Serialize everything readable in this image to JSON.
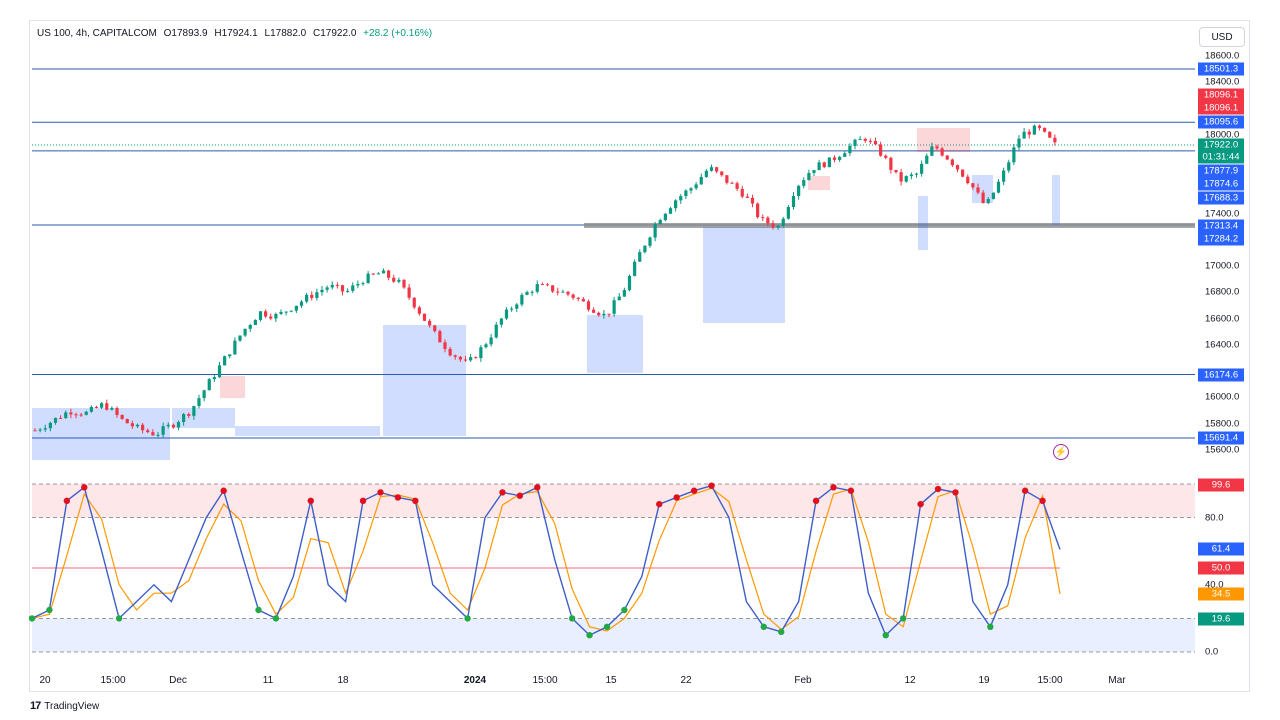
{
  "header": {
    "symbol": "US 100, 4h, CAPITALCOM",
    "open": "O17893.9",
    "high": "H17924.1",
    "low": "L17882.0",
    "close": "C17922.0",
    "change": "+28.2 (+0.16%)"
  },
  "currency": "USD",
  "price_ticks": [
    "18600.0",
    "18400.0",
    "18000.0",
    "17400.0",
    "17000.0",
    "16800.0",
    "16600.0",
    "16400.0",
    "16000.0",
    "15800.0",
    "15600.0"
  ],
  "price_badges": [
    {
      "label": "18501.3",
      "color": "#2962ff"
    },
    {
      "label": "18096.1",
      "color": "#f23645"
    },
    {
      "label": "18096.1",
      "color": "#f23645"
    },
    {
      "label": "18095.6",
      "color": "#2962ff"
    },
    {
      "label": "17922.0",
      "color": "#089981"
    },
    {
      "label": "01:31:44",
      "color": "#089981"
    },
    {
      "label": "17877.9",
      "color": "#2962ff"
    },
    {
      "label": "17874.6",
      "color": "#2962ff"
    },
    {
      "label": "17688.3",
      "color": "#2962ff"
    },
    {
      "label": "17313.4",
      "color": "#2962ff"
    },
    {
      "label": "17284.2",
      "color": "#2962ff"
    },
    {
      "label": "16174.6",
      "color": "#2962ff"
    },
    {
      "label": "15691.4",
      "color": "#2962ff"
    }
  ],
  "osc_ticks": [
    "80.0",
    "40.0",
    "0.0"
  ],
  "osc_badges": [
    {
      "label": "99.6",
      "color": "#f23645"
    },
    {
      "label": "61.4",
      "color": "#2962ff"
    },
    {
      "label": "50.0",
      "color": "#f23645"
    },
    {
      "label": "34.5",
      "color": "#ff9800"
    },
    {
      "label": "19.6",
      "color": "#089981"
    }
  ],
  "time_labels": [
    {
      "label": "20",
      "bold": false
    },
    {
      "label": "15:00",
      "bold": false
    },
    {
      "label": "Dec",
      "bold": false
    },
    {
      "label": "11",
      "bold": false
    },
    {
      "label": "18",
      "bold": false
    },
    {
      "label": "2024",
      "bold": true
    },
    {
      "label": "15:00",
      "bold": false
    },
    {
      "label": "15",
      "bold": false
    },
    {
      "label": "22",
      "bold": false
    },
    {
      "label": "Feb",
      "bold": false
    },
    {
      "label": "12",
      "bold": false
    },
    {
      "label": "19",
      "bold": false
    },
    {
      "label": "15:00",
      "bold": false
    },
    {
      "label": "Mar",
      "bold": false
    }
  ],
  "footer": {
    "logo": "17",
    "brand": "TradingView"
  },
  "colors": {
    "up": "#089981",
    "down": "#f23645",
    "blue": "#2962ff",
    "orange": "#ff9800"
  },
  "icons": {
    "alert": "lightning-icon"
  },
  "chart_data": {
    "type": "candlestick",
    "symbol": "US 100",
    "interval": "4h",
    "price_levels": [
      18501.3,
      18095.6,
      17877.9,
      17313.4,
      16174.6,
      15691.4
    ],
    "close_path": [
      15750,
      15820,
      15900,
      15880,
      15950,
      15830,
      15760,
      15720,
      15800,
      15900,
      16100,
      16300,
      16500,
      16650,
      16620,
      16700,
      16780,
      16850,
      16800,
      16900,
      16950,
      16880,
      16700,
      16500,
      16350,
      16250,
      16400,
      16600,
      16750,
      16850,
      16820,
      16780,
      16700,
      16620,
      16800,
      17100,
      17350,
      17500,
      17600,
      17750,
      17650,
      17550,
      17350,
      17300,
      17600,
      17750,
      17800,
      17900,
      17980,
      17850,
      17650,
      17700,
      17920,
      17800,
      17650,
      17450,
      17700,
      18000,
      18050,
      17922
    ],
    "oscillator": {
      "type": "stochastic",
      "levels": [
        80,
        50,
        20
      ],
      "last_k": 61.4,
      "last_d": 34.5,
      "values_k": [
        20,
        25,
        90,
        98,
        60,
        20,
        30,
        40,
        30,
        55,
        80,
        96,
        60,
        25,
        20,
        45,
        90,
        40,
        30,
        90,
        95,
        92,
        90,
        40,
        30,
        20,
        80,
        95,
        93,
        98,
        55,
        20,
        10,
        15,
        25,
        45,
        88,
        92,
        96,
        99,
        80,
        30,
        15,
        12,
        30,
        90,
        98,
        96,
        35,
        10,
        20,
        88,
        97,
        95,
        30,
        15,
        40,
        96,
        90,
        61
      ],
      "ylim": [
        0,
        100
      ]
    },
    "ylim": [
      15600,
      18650
    ]
  }
}
